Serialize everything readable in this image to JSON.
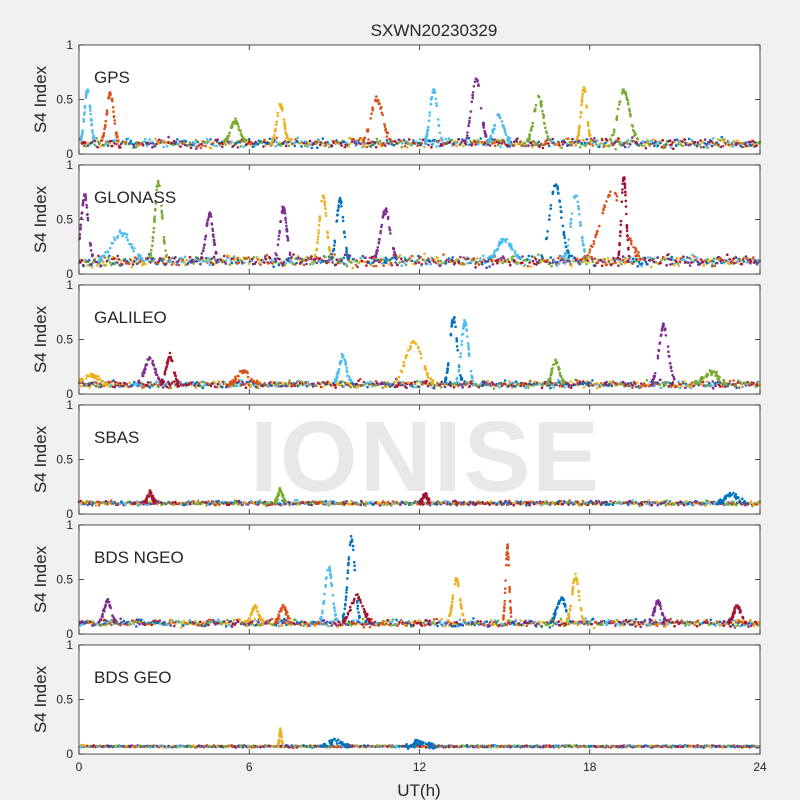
{
  "chart_data": {
    "type": "scatter",
    "title": "SXWN20230329",
    "xlabel": "UT(h)",
    "xlim": [
      0,
      24
    ],
    "xticks": [
      0,
      6,
      12,
      18,
      24
    ],
    "watermark": "IONISE",
    "series_colors": [
      "#0072BD",
      "#D95319",
      "#EDB120",
      "#7E2F8E",
      "#77AC30",
      "#4DBEEE",
      "#A2142F"
    ],
    "panels": [
      {
        "name": "GPS",
        "ylabel": "S4 Index",
        "ylim": [
          0,
          1
        ],
        "yticks": [
          0,
          0.5,
          1
        ],
        "base": 0.1,
        "noise": 0.05,
        "bursts": [
          {
            "t": 0.3,
            "peak": 0.58,
            "w": 0.25,
            "c": 5
          },
          {
            "t": 1.1,
            "peak": 0.55,
            "w": 0.3,
            "c": 1
          },
          {
            "t": 5.5,
            "peak": 0.3,
            "w": 0.4,
            "c": 4
          },
          {
            "t": 7.1,
            "peak": 0.45,
            "w": 0.3,
            "c": 2
          },
          {
            "t": 10.5,
            "peak": 0.5,
            "w": 0.5,
            "c": 1
          },
          {
            "t": 12.5,
            "peak": 0.6,
            "w": 0.3,
            "c": 5
          },
          {
            "t": 14.0,
            "peak": 0.68,
            "w": 0.4,
            "c": 3
          },
          {
            "t": 14.8,
            "peak": 0.35,
            "w": 0.4,
            "c": 5
          },
          {
            "t": 16.2,
            "peak": 0.52,
            "w": 0.4,
            "c": 4
          },
          {
            "t": 17.8,
            "peak": 0.6,
            "w": 0.25,
            "c": 2
          },
          {
            "t": 19.2,
            "peak": 0.58,
            "w": 0.5,
            "c": 4
          }
        ]
      },
      {
        "name": "GLONASS",
        "ylabel": "S4 Index",
        "ylim": [
          0,
          1
        ],
        "yticks": [
          0,
          0.5,
          1
        ],
        "base": 0.12,
        "noise": 0.06,
        "bursts": [
          {
            "t": 0.2,
            "peak": 0.72,
            "w": 0.3,
            "c": 3
          },
          {
            "t": 1.5,
            "peak": 0.38,
            "w": 0.8,
            "c": 5
          },
          {
            "t": 2.8,
            "peak": 0.85,
            "w": 0.3,
            "c": 4
          },
          {
            "t": 4.6,
            "peak": 0.55,
            "w": 0.3,
            "c": 3
          },
          {
            "t": 7.2,
            "peak": 0.6,
            "w": 0.3,
            "c": 3
          },
          {
            "t": 8.6,
            "peak": 0.72,
            "w": 0.3,
            "c": 2
          },
          {
            "t": 9.2,
            "peak": 0.68,
            "w": 0.3,
            "c": 0
          },
          {
            "t": 10.8,
            "peak": 0.58,
            "w": 0.4,
            "c": 3
          },
          {
            "t": 15.0,
            "peak": 0.32,
            "w": 0.6,
            "c": 5
          },
          {
            "t": 16.8,
            "peak": 0.82,
            "w": 0.5,
            "c": 0
          },
          {
            "t": 17.5,
            "peak": 0.72,
            "w": 0.4,
            "c": 5
          },
          {
            "t": 18.8,
            "peak": 0.75,
            "w": 1.0,
            "c": 1
          },
          {
            "t": 19.2,
            "peak": 0.9,
            "w": 0.2,
            "c": 6
          }
        ]
      },
      {
        "name": "GALILEO",
        "ylabel": "S4 Index",
        "ylim": [
          0,
          1
        ],
        "yticks": [
          0,
          0.5,
          1
        ],
        "base": 0.09,
        "noise": 0.04,
        "bursts": [
          {
            "t": 0.4,
            "peak": 0.17,
            "w": 0.6,
            "c": 2
          },
          {
            "t": 2.5,
            "peak": 0.33,
            "w": 0.4,
            "c": 3
          },
          {
            "t": 3.2,
            "peak": 0.35,
            "w": 0.3,
            "c": 6
          },
          {
            "t": 5.8,
            "peak": 0.2,
            "w": 0.5,
            "c": 1
          },
          {
            "t": 9.3,
            "peak": 0.35,
            "w": 0.3,
            "c": 5
          },
          {
            "t": 11.8,
            "peak": 0.48,
            "w": 0.7,
            "c": 2
          },
          {
            "t": 13.2,
            "peak": 0.7,
            "w": 0.3,
            "c": 0
          },
          {
            "t": 13.6,
            "peak": 0.66,
            "w": 0.3,
            "c": 5
          },
          {
            "t": 16.8,
            "peak": 0.3,
            "w": 0.3,
            "c": 4
          },
          {
            "t": 20.6,
            "peak": 0.62,
            "w": 0.4,
            "c": 3
          },
          {
            "t": 22.3,
            "peak": 0.2,
            "w": 0.6,
            "c": 4
          }
        ]
      },
      {
        "name": "SBAS",
        "ylabel": "S4 Index",
        "ylim": [
          0,
          1
        ],
        "yticks": [
          0,
          0.5,
          1
        ],
        "base": 0.1,
        "noise": 0.025,
        "bursts": [
          {
            "t": 2.5,
            "peak": 0.2,
            "w": 0.2,
            "c": 6
          },
          {
            "t": 7.1,
            "peak": 0.22,
            "w": 0.2,
            "c": 4
          },
          {
            "t": 12.2,
            "peak": 0.18,
            "w": 0.2,
            "c": 6
          },
          {
            "t": 23.0,
            "peak": 0.18,
            "w": 0.5,
            "c": 0
          }
        ]
      },
      {
        "name": "BDS NGEO",
        "ylabel": "S4 Index",
        "ylim": [
          0,
          1
        ],
        "yticks": [
          0,
          0.5,
          1
        ],
        "base": 0.1,
        "noise": 0.04,
        "bursts": [
          {
            "t": 1.0,
            "peak": 0.3,
            "w": 0.3,
            "c": 3
          },
          {
            "t": 6.2,
            "peak": 0.25,
            "w": 0.3,
            "c": 2
          },
          {
            "t": 7.2,
            "peak": 0.25,
            "w": 0.3,
            "c": 1
          },
          {
            "t": 8.8,
            "peak": 0.62,
            "w": 0.3,
            "c": 5
          },
          {
            "t": 9.6,
            "peak": 0.88,
            "w": 0.3,
            "c": 0
          },
          {
            "t": 9.8,
            "peak": 0.35,
            "w": 0.5,
            "c": 6
          },
          {
            "t": 13.3,
            "peak": 0.5,
            "w": 0.3,
            "c": 2
          },
          {
            "t": 15.1,
            "peak": 0.8,
            "w": 0.15,
            "c": 1
          },
          {
            "t": 17.0,
            "peak": 0.32,
            "w": 0.4,
            "c": 0
          },
          {
            "t": 17.5,
            "peak": 0.52,
            "w": 0.3,
            "c": 2
          },
          {
            "t": 20.4,
            "peak": 0.3,
            "w": 0.3,
            "c": 3
          },
          {
            "t": 23.2,
            "peak": 0.26,
            "w": 0.3,
            "c": 6
          }
        ]
      },
      {
        "name": "BDS GEO",
        "ylabel": "S4 Index",
        "ylim": [
          0,
          1
        ],
        "yticks": [
          0,
          0.5,
          1
        ],
        "base": 0.07,
        "noise": 0.012,
        "bursts": [
          {
            "t": 7.1,
            "peak": 0.2,
            "w": 0.1,
            "c": 2
          },
          {
            "t": 9.0,
            "peak": 0.12,
            "w": 0.5,
            "c": 0
          },
          {
            "t": 12.0,
            "peak": 0.11,
            "w": 0.5,
            "c": 0
          }
        ]
      }
    ]
  }
}
